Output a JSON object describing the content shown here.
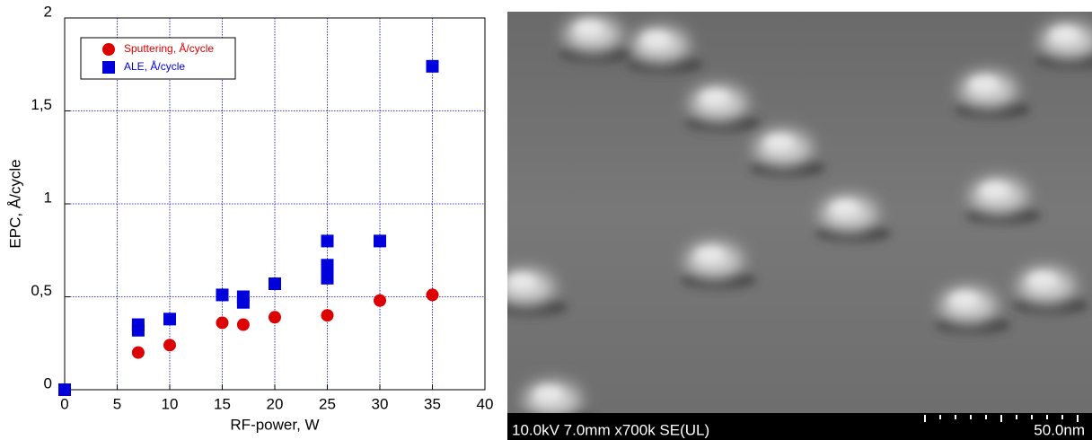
{
  "chart_data": {
    "type": "scatter",
    "xlabel": "RF-power, W",
    "ylabel": "EPC, Å/cycle",
    "xlim": [
      0,
      40
    ],
    "xticks": [
      0,
      5,
      10,
      15,
      20,
      25,
      30,
      35,
      40
    ],
    "ylim": [
      0,
      2
    ],
    "yticks": [
      0,
      {
        "value": 0.5,
        "label": "0,5"
      },
      1,
      {
        "value": 1.5,
        "label": "1,5"
      },
      2
    ],
    "grid": true,
    "legend": "upper left",
    "series": [
      {
        "name": "Sputtering, Å/cycle",
        "color": "#dd0000",
        "marker": "circle",
        "x": [
          7,
          10,
          15,
          17,
          20,
          25,
          30,
          35
        ],
        "values": [
          0.2,
          0.24,
          0.36,
          0.35,
          0.39,
          0.4,
          0.48,
          0.51
        ]
      },
      {
        "name": "ALE, Å/cycle",
        "color": "#0000dd",
        "marker": "square",
        "x": [
          0,
          7,
          7,
          10,
          15,
          17,
          17,
          20,
          25,
          25,
          25,
          25,
          30,
          35
        ],
        "values": [
          0,
          0.35,
          0.32,
          0.38,
          0.51,
          0.5,
          0.47,
          0.57,
          0.8,
          0.67,
          0.63,
          0.6,
          0.8,
          1.74
        ]
      }
    ]
  },
  "image": {
    "caption": "10.0kV 7.0mm x700k SE(UL)",
    "scale_label": "50.0nm"
  }
}
